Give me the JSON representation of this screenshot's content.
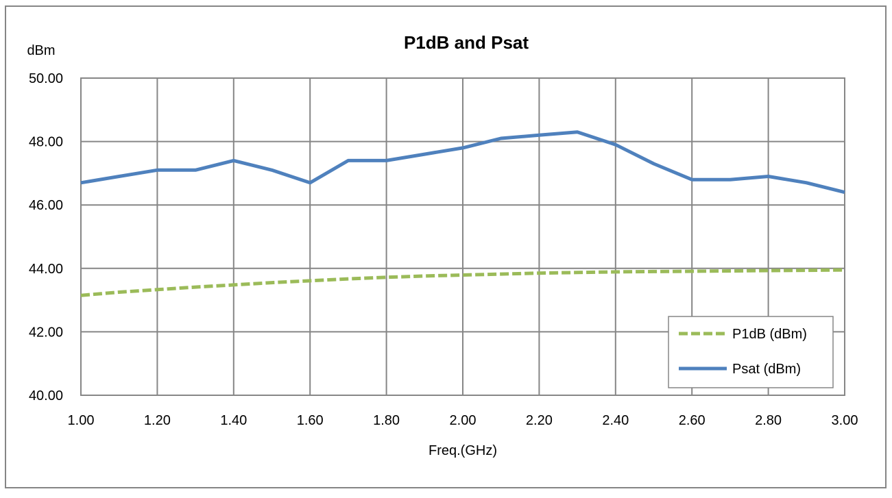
{
  "chart_data": {
    "type": "line",
    "title": "P1dB and Psat",
    "xlabel": "Freq.(GHz)",
    "ylabel": "dBm",
    "xlim": [
      1.0,
      3.0
    ],
    "ylim": [
      40.0,
      50.0
    ],
    "x_ticks": [
      "1.00",
      "1.20",
      "1.40",
      "1.60",
      "1.80",
      "2.00",
      "2.20",
      "2.40",
      "2.60",
      "2.80",
      "3.00"
    ],
    "y_ticks": [
      "40.00",
      "42.00",
      "44.00",
      "46.00",
      "48.00",
      "50.00"
    ],
    "grid": true,
    "legend_position": "bottom-right",
    "x": [
      1.0,
      1.1,
      1.2,
      1.3,
      1.4,
      1.5,
      1.6,
      1.7,
      1.8,
      1.9,
      2.0,
      2.1,
      2.2,
      2.3,
      2.4,
      2.5,
      2.6,
      2.7,
      2.8,
      2.9,
      3.0
    ],
    "series": [
      {
        "name": "P1dB (dBm)",
        "color": "#9BBB59",
        "style": "dashed",
        "values": [
          43.15,
          43.25,
          43.33,
          43.41,
          43.48,
          43.55,
          43.61,
          43.67,
          43.72,
          43.76,
          43.79,
          43.82,
          43.85,
          43.87,
          43.89,
          43.9,
          43.91,
          43.92,
          43.93,
          43.94,
          43.95
        ]
      },
      {
        "name": "Psat (dBm)",
        "color": "#4F81BD",
        "style": "solid",
        "values": [
          46.7,
          46.9,
          47.1,
          47.1,
          47.4,
          47.1,
          46.7,
          47.4,
          47.4,
          47.6,
          47.8,
          48.1,
          48.2,
          48.3,
          47.9,
          47.3,
          46.8,
          46.8,
          46.9,
          46.7,
          46.4
        ]
      }
    ]
  }
}
